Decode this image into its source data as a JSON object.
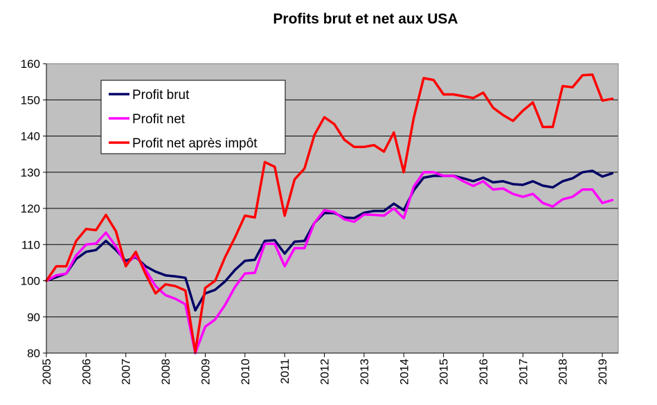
{
  "chart_data": {
    "type": "line",
    "title": "Profits brut et net aux USA",
    "xlabel": "",
    "ylabel": "",
    "ylim": [
      80,
      160
    ],
    "yticks": [
      "80",
      "90",
      "100",
      "110",
      "120",
      "130",
      "140",
      "150",
      "160"
    ],
    "xtick_labels": [
      "2005",
      "2006",
      "2007",
      "2008",
      "2009",
      "2010",
      "2011",
      "2012",
      "2013",
      "2014",
      "2015",
      "2016",
      "2017",
      "2018",
      "2019"
    ],
    "x_start": 2005,
    "x_end": 2019.4,
    "legend_position": "top-left",
    "grid": true,
    "plot_background": "#c0c0c0",
    "x": [
      2005.0,
      2005.25,
      2005.5,
      2005.75,
      2006.0,
      2006.25,
      2006.5,
      2006.75,
      2007.0,
      2007.25,
      2007.5,
      2007.75,
      2008.0,
      2008.25,
      2008.5,
      2008.75,
      2009.0,
      2009.25,
      2009.5,
      2009.75,
      2010.0,
      2010.25,
      2010.5,
      2010.75,
      2011.0,
      2011.25,
      2011.5,
      2011.75,
      2012.0,
      2012.25,
      2012.5,
      2012.75,
      2013.0,
      2013.25,
      2013.5,
      2013.75,
      2014.0,
      2014.25,
      2014.5,
      2014.75,
      2015.0,
      2015.25,
      2015.5,
      2015.75,
      2016.0,
      2016.25,
      2016.5,
      2016.75,
      2017.0,
      2017.25,
      2017.5,
      2017.75,
      2018.0,
      2018.25,
      2018.5,
      2018.75,
      2019.0,
      2019.25
    ],
    "series": [
      {
        "name": "Profit brut",
        "color": "#000066",
        "values": [
          100,
          101,
          102,
          106,
          108,
          108.5,
          111,
          108.5,
          105.5,
          106.5,
          104,
          102.5,
          101.5,
          101.2,
          100.8,
          91.8,
          96.5,
          97.5,
          99.8,
          103,
          105.5,
          105.8,
          111,
          111.2,
          107.5,
          110.8,
          111,
          116,
          118.7,
          118.7,
          117.5,
          117.3,
          118.8,
          119.3,
          119.3,
          121.3,
          119.5,
          125,
          128.5,
          129,
          129,
          129,
          128.3,
          127.5,
          128.5,
          127.2,
          127.5,
          126.7,
          126.5,
          127.5,
          126.3,
          125.8,
          127.5,
          128.3,
          130,
          130.4,
          128.8,
          129.7
        ]
      },
      {
        "name": "Profit net",
        "color": "#ff00ff",
        "values": [
          100,
          101.5,
          102,
          107,
          110,
          110.3,
          113.3,
          109.5,
          104.5,
          107,
          103,
          98.5,
          96,
          95,
          93.5,
          80,
          87.3,
          89.3,
          93.3,
          98.3,
          102,
          102.2,
          110.2,
          110.2,
          104,
          109,
          109,
          116,
          119.5,
          119,
          117,
          116.3,
          118.3,
          118.2,
          118,
          120,
          117.3,
          126,
          130,
          130,
          129,
          129,
          127.5,
          126.2,
          127.5,
          125.2,
          125.5,
          124,
          123.2,
          124,
          121.5,
          120.5,
          122.5,
          123.2,
          125.2,
          125.2,
          121.5,
          122.3
        ]
      },
      {
        "name": "Profit net après impôt",
        "color": "#ff0000",
        "values": [
          100,
          104,
          104,
          111,
          114.3,
          114,
          118.2,
          113.7,
          104,
          108,
          101.8,
          96.5,
          99,
          98.5,
          97.3,
          80.3,
          98,
          100,
          106.5,
          112,
          118,
          117.5,
          132.8,
          131.5,
          118,
          128,
          131,
          140.3,
          145.2,
          143.3,
          139,
          137,
          137,
          137.5,
          135.7,
          141,
          130,
          145,
          156,
          155.5,
          151.5,
          151.5,
          151,
          150.5,
          152,
          147.8,
          145.8,
          144.2,
          147,
          149.3,
          142.5,
          142.5,
          153.8,
          153.5,
          156.8,
          157,
          149.8,
          150.3
        ]
      }
    ]
  }
}
